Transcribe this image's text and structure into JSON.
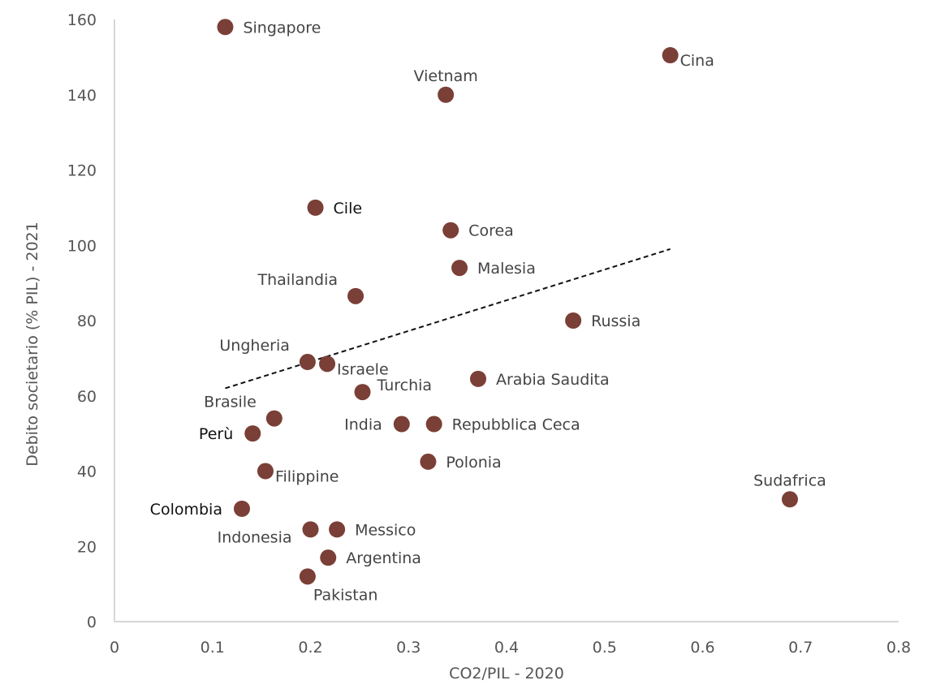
{
  "chart_data": {
    "type": "scatter",
    "title": "",
    "xlabel": "CO2/PIL - 2020",
    "ylabel": "Debito societario (% PIL) - 2021",
    "xlim": [
      0,
      0.8
    ],
    "ylim": [
      0,
      160
    ],
    "x_ticks": [
      "0",
      "0.1",
      "0.2",
      "0.3",
      "0.4",
      "0.5",
      "0.6",
      "0.7",
      "0.8"
    ],
    "y_ticks": [
      "0",
      "20",
      "40",
      "60",
      "80",
      "100",
      "120",
      "140",
      "160"
    ],
    "grid": false,
    "marker_color": "#7a3f36",
    "highlight_color": "#111111",
    "trendline": {
      "style": "dashed",
      "color": "#111111",
      "x": [
        0.113,
        0.567
      ],
      "y": [
        62,
        99
      ]
    },
    "points": [
      {
        "name": "Singapore",
        "x": 0.113,
        "y": 158,
        "highlight": false,
        "label_pos": "right"
      },
      {
        "name": "Cina",
        "x": 0.567,
        "y": 150.5,
        "highlight": false,
        "label_pos": "right-below"
      },
      {
        "name": "Vietnam",
        "x": 0.338,
        "y": 140,
        "highlight": false,
        "label_pos": "above"
      },
      {
        "name": "Cile",
        "x": 0.205,
        "y": 110,
        "highlight": true,
        "label_pos": "right"
      },
      {
        "name": "Corea",
        "x": 0.343,
        "y": 104,
        "highlight": false,
        "label_pos": "right"
      },
      {
        "name": "Malesia",
        "x": 0.352,
        "y": 94,
        "highlight": false,
        "label_pos": "right"
      },
      {
        "name": "Thailandia",
        "x": 0.246,
        "y": 86.5,
        "highlight": false,
        "label_pos": "above-left"
      },
      {
        "name": "Russia",
        "x": 0.468,
        "y": 80,
        "highlight": false,
        "label_pos": "right"
      },
      {
        "name": "Ungheria",
        "x": 0.197,
        "y": 69,
        "highlight": false,
        "label_pos": "above-left"
      },
      {
        "name": "Israele",
        "x": 0.217,
        "y": 68.5,
        "highlight": false,
        "label_pos": "right-below"
      },
      {
        "name": "Arabia Saudita",
        "x": 0.371,
        "y": 64.5,
        "highlight": false,
        "label_pos": "right"
      },
      {
        "name": "Turchia",
        "x": 0.253,
        "y": 61,
        "highlight": false,
        "label_pos": "right-above"
      },
      {
        "name": "Brasile",
        "x": 0.163,
        "y": 54,
        "highlight": false,
        "label_pos": "above-left"
      },
      {
        "name": "India",
        "x": 0.293,
        "y": 52.5,
        "highlight": false,
        "label_pos": "left"
      },
      {
        "name": "Repubblica Ceca",
        "x": 0.326,
        "y": 52.5,
        "highlight": false,
        "label_pos": "right"
      },
      {
        "name": "Perù",
        "x": 0.141,
        "y": 50,
        "highlight": true,
        "label_pos": "left"
      },
      {
        "name": "Polonia",
        "x": 0.32,
        "y": 42.5,
        "highlight": false,
        "label_pos": "right"
      },
      {
        "name": "Filippine",
        "x": 0.154,
        "y": 40,
        "highlight": false,
        "label_pos": "right-below"
      },
      {
        "name": "Sudafrica",
        "x": 0.689,
        "y": 32.5,
        "highlight": false,
        "label_pos": "above"
      },
      {
        "name": "Colombia",
        "x": 0.13,
        "y": 30,
        "highlight": true,
        "label_pos": "left"
      },
      {
        "name": "Indonesia",
        "x": 0.2,
        "y": 24.5,
        "highlight": false,
        "label_pos": "left-below"
      },
      {
        "name": "Messico",
        "x": 0.227,
        "y": 24.5,
        "highlight": false,
        "label_pos": "right"
      },
      {
        "name": "Argentina",
        "x": 0.218,
        "y": 17,
        "highlight": false,
        "label_pos": "right"
      },
      {
        "name": "Pakistan",
        "x": 0.197,
        "y": 12,
        "highlight": false,
        "label_pos": "below"
      }
    ]
  }
}
